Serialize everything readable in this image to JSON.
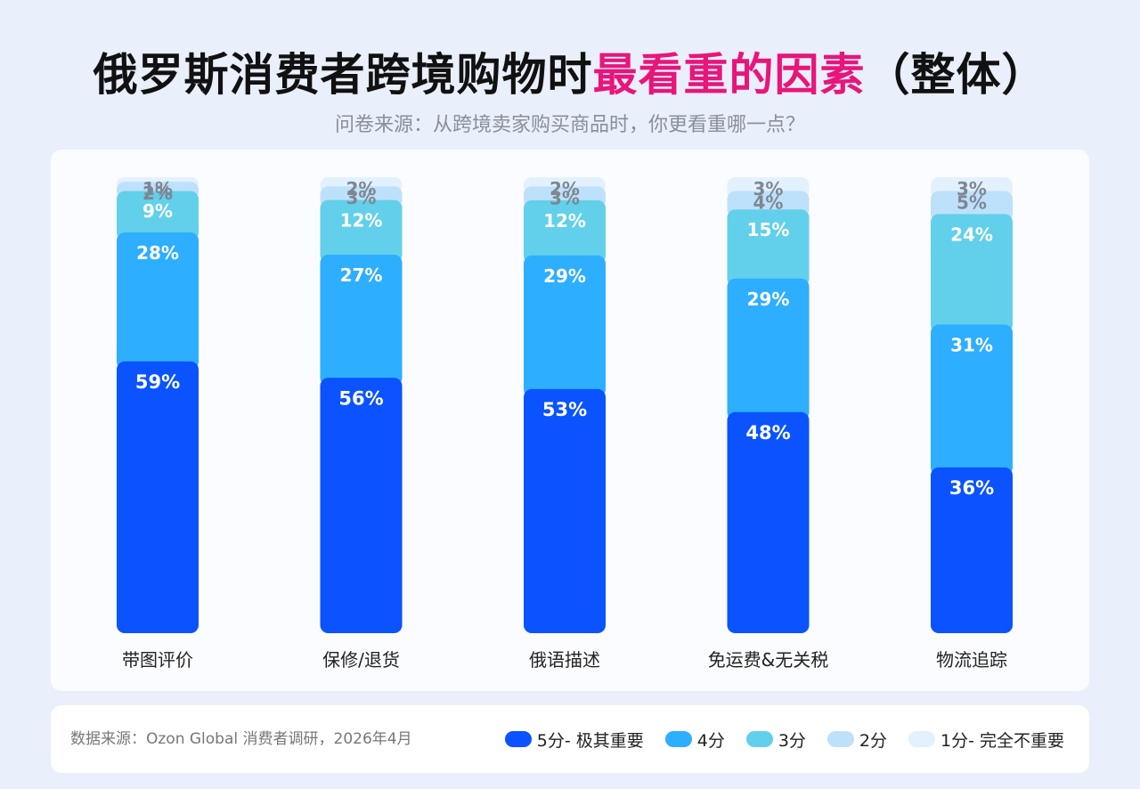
{
  "header": {
    "title_main": "俄罗斯消费者跨境购物时",
    "title_highlight": "最看重的因素",
    "title_suffix": "（整体）",
    "subtitle": "问卷来源：从跨境卖家购买商品时，你更看重哪一点？"
  },
  "footer": {
    "source": "数据来源：Ozon Global 消费者调研，2026年4月"
  },
  "colors": {
    "highlight": "#e8157a",
    "s5": "#0a53ff",
    "s4": "#2eaeff",
    "s3": "#62d0ea",
    "s2": "#bde1fb",
    "s1": "#e2f1fd"
  },
  "chart_data": {
    "type": "bar",
    "stacked": true,
    "categories": [
      "带图评价",
      "保修/退货",
      "俄语描述",
      "免运费&无关税",
      "物流追踪"
    ],
    "series": [
      {
        "name": "5分- 极其重要",
        "values": [
          59,
          56,
          53,
          48,
          36
        ],
        "labels": [
          "59%",
          "56%",
          "53%",
          "48%",
          "36%"
        ]
      },
      {
        "name": "4分",
        "values": [
          28,
          27,
          29,
          29,
          31
        ],
        "labels": [
          "28%",
          "27%",
          "29%",
          "29%",
          "31%"
        ]
      },
      {
        "name": "3分",
        "values": [
          9,
          12,
          12,
          15,
          24
        ],
        "labels": [
          "9%",
          "12%",
          "12%",
          "15%",
          "24%"
        ]
      },
      {
        "name": "2分",
        "values": [
          2,
          3,
          3,
          4,
          5
        ],
        "labels": [
          "2%",
          "3%",
          "3%",
          "4%",
          "5%"
        ]
      },
      {
        "name": "1分- 完全不重要",
        "values": [
          1,
          2,
          2,
          3,
          3
        ],
        "labels": [
          "1%",
          "2%",
          "2%",
          "3%",
          "3%"
        ]
      }
    ],
    "unit": "%",
    "legend_position": "bottom-right",
    "grid": false
  }
}
